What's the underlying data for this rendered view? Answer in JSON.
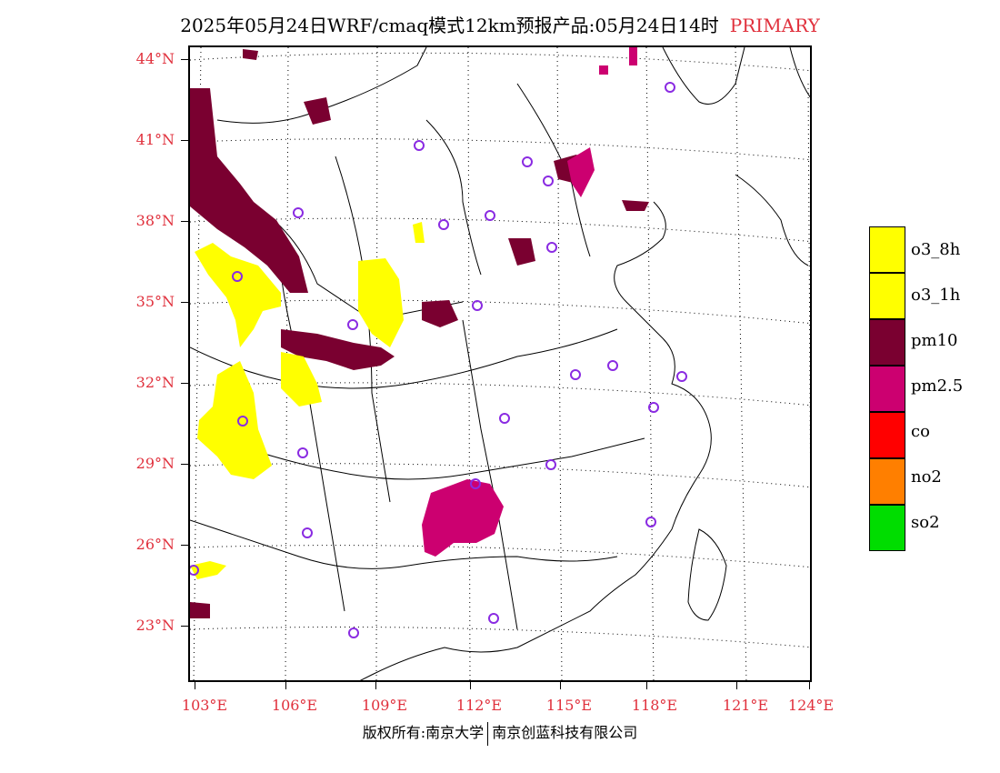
{
  "title": {
    "text": "2025年05月24日WRF/cmaq模式12km预报产品:05月24日14时",
    "tag": "PRIMARY"
  },
  "map": {
    "lat_labels": [
      "44°N",
      "41°N",
      "38°N",
      "35°N",
      "32°N",
      "29°N",
      "26°N",
      "23°N"
    ],
    "lon_labels": [
      "103°E",
      "106°E",
      "109°E",
      "112°E",
      "115°E",
      "118°E",
      "121°E",
      "124°E"
    ]
  },
  "legend": [
    {
      "label": "o3_8h",
      "color": "#ffff00"
    },
    {
      "label": "o3_1h",
      "color": "#ffff00"
    },
    {
      "label": "pm10",
      "color": "#7a0030"
    },
    {
      "label": "pm2.5",
      "color": "#cc0070"
    },
    {
      "label": "co",
      "color": "#ff0000"
    },
    {
      "label": "no2",
      "color": "#ff7f00"
    },
    {
      "label": "so2",
      "color": "#00dd00"
    }
  ],
  "footer": {
    "left": "版权所有:南京大学",
    "right": "南京创蓝科技有限公司"
  },
  "colors": {
    "axis_label": "#e0303c",
    "station_marker": "#8a2be2"
  }
}
